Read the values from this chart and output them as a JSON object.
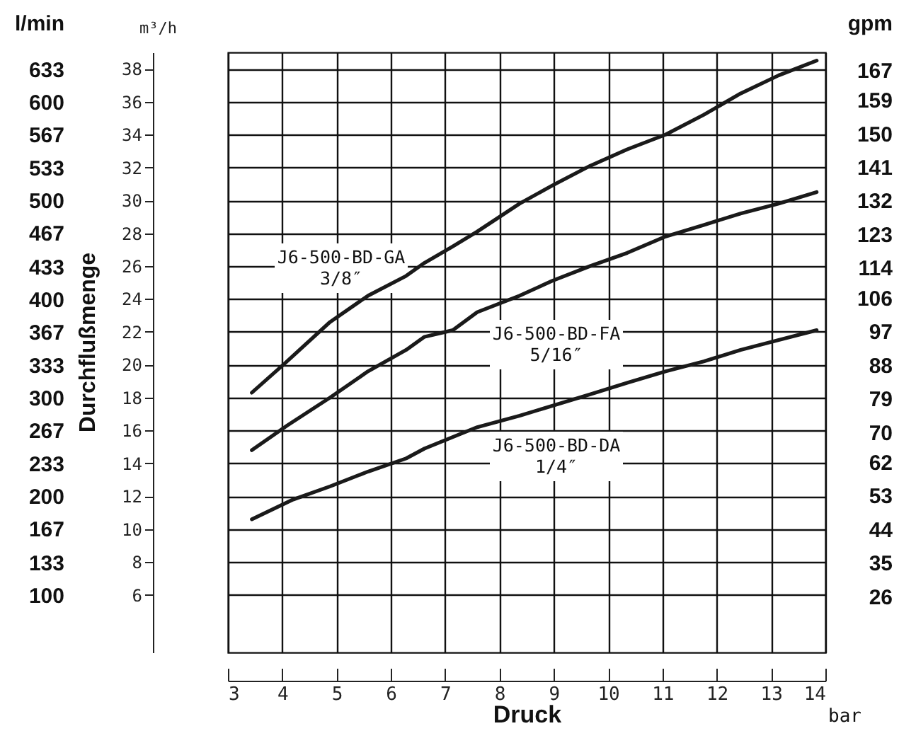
{
  "chart_data": {
    "type": "line",
    "xlabel": "Druck",
    "ylabel": "m³/h",
    "y2label": "gpm",
    "y3label": "l/min",
    "annotations": [
      "Durchflußmenge",
      "bar"
    ],
    "xlim": [
      3,
      14
    ],
    "xticks": [
      3,
      4,
      5,
      6,
      7,
      8,
      9,
      10,
      11,
      12,
      13,
      14
    ],
    "ylim": [
      2.5,
      39
    ],
    "yticks": [
      6,
      8,
      10,
      12,
      14,
      16,
      18,
      20,
      22,
      24,
      26,
      28,
      30,
      32,
      34,
      36,
      38
    ],
    "y2lim": [
      11,
      171.7
    ],
    "y2ticks": [
      26,
      35,
      44,
      53,
      62,
      70,
      79,
      88,
      97,
      106,
      114,
      123,
      132,
      141,
      150,
      159,
      167
    ],
    "y3lim": [
      41.7,
      650
    ],
    "y3ticks": [
      100,
      133,
      167,
      200,
      233,
      267,
      300,
      333,
      367,
      400,
      433,
      467,
      500,
      533,
      567,
      600,
      633
    ],
    "grid": true,
    "series": [
      {
        "name": "J6-500-BD-GA\n3/8″",
        "color": "#1a1a1a",
        "x": [
          3.44,
          4.02,
          4.88,
          5.58,
          6.28,
          6.62,
          7.14,
          7.59,
          8.37,
          8.97,
          9.67,
          10.35,
          11.06,
          11.76,
          12.44,
          13.14,
          13.84
        ],
        "values": [
          18.3,
          20.0,
          22.6,
          24.2,
          25.4,
          26.2,
          27.2,
          28.1,
          29.8,
          30.9,
          32.1,
          33.1,
          34.0,
          35.2,
          36.5,
          37.6,
          38.5
        ]
      },
      {
        "name": "J6-500-BD-FA\n5/16″",
        "color": "#1a1a1a",
        "x": [
          3.44,
          4.09,
          4.88,
          5.58,
          6.28,
          6.62,
          7.14,
          7.59,
          8.37,
          8.97,
          9.67,
          10.35,
          11.06,
          11.76,
          12.44,
          13.14,
          13.84
        ],
        "values": [
          14.8,
          16.3,
          18.0,
          19.6,
          20.9,
          21.7,
          22.1,
          23.2,
          24.2,
          25.1,
          26.0,
          26.8,
          27.8,
          28.5,
          29.2,
          29.8,
          30.5
        ]
      },
      {
        "name": "J6-500-BD-DA\n1/4″",
        "color": "#1a1a1a",
        "x": [
          3.44,
          4.2,
          4.88,
          5.58,
          6.28,
          6.62,
          7.14,
          7.59,
          8.37,
          9.67,
          10.35,
          11.06,
          11.76,
          12.44,
          13.14,
          13.84
        ],
        "values": [
          10.6,
          11.8,
          12.6,
          13.5,
          14.3,
          14.9,
          15.6,
          16.2,
          16.9,
          18.2,
          18.9,
          19.6,
          20.2,
          20.9,
          21.5,
          22.1
        ]
      }
    ]
  }
}
